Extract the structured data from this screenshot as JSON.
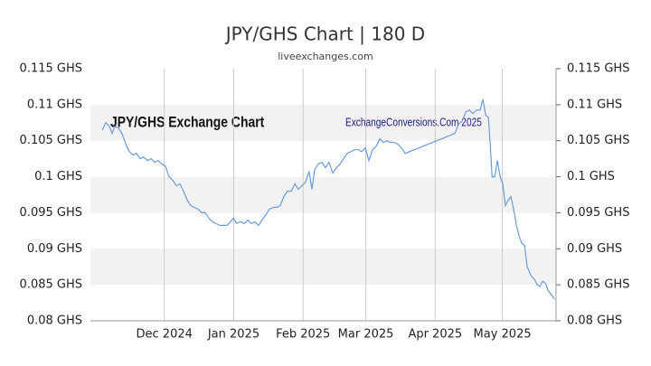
{
  "chart_data": {
    "type": "line",
    "title": "JPY/GHS Chart | 180 D",
    "subtitle": "liveexchanges.com",
    "annotations": [
      "JPY/GHS Exchange Chart",
      "ExchangeConversions.Com 2025"
    ],
    "color": "#6b9bd9",
    "grid": true,
    "x": [
      5.3,
      6.9,
      8.5,
      9.7,
      10.9,
      12.5,
      14.1,
      15.8,
      17.4,
      19.0,
      20.6,
      22.2,
      23.8,
      25.4,
      27.1,
      28.7,
      30.3,
      31.9,
      33.5,
      35.1,
      36.8,
      38.4,
      40.0,
      41.6,
      43.2,
      44.8,
      46.4,
      48.1,
      49.7,
      51.3,
      52.9,
      54.5,
      56.1,
      57.8,
      59.4,
      61.0,
      62.6,
      63.8,
      65.4,
      67.0,
      68.7,
      70.3,
      71.9,
      73.5,
      75.1,
      76.7,
      78.4,
      80.0,
      81.6,
      83.2,
      84.8,
      86.4,
      88.0,
      89.7,
      91.3,
      92.9,
      94.5,
      96.1,
      97.7,
      98.9,
      100.2,
      101.8,
      103.4,
      105.0,
      106.6,
      108.3,
      109.9,
      111.5,
      113.1,
      114.7,
      116.4,
      118.0,
      119.6,
      121.2,
      122.8,
      124.4,
      126.0,
      127.7,
      129.3,
      130.9,
      132.5,
      134.1,
      135.7,
      137.4,
      139.0,
      140.6,
      162.8,
      164.4,
      166.1,
      167.7,
      169.3,
      170.9,
      172.5,
      174.1,
      175.3,
      176.6,
      177.8,
      178.6,
      179.4,
      180.6,
      181.8,
      183.0,
      184.2,
      185.4,
      186.6,
      187.8,
      189.0,
      190.3,
      191.5,
      192.7,
      193.9,
      195.1,
      196.8,
      198.4,
      199.6,
      200.8,
      202.0,
      203.2,
      204.4,
      205.6,
      207.3
    ],
    "values": [
      0.1065,
      0.1075,
      0.107,
      0.106,
      0.107,
      0.10675,
      0.106,
      0.1045,
      0.1035,
      0.103,
      0.10325,
      0.1025,
      0.10275,
      0.10225,
      0.1025,
      0.102,
      0.10225,
      0.10175,
      0.1015,
      0.1,
      0.0995,
      0.09875,
      0.099,
      0.098,
      0.09675,
      0.096,
      0.09575,
      0.0955,
      0.095,
      0.095,
      0.09425,
      0.09375,
      0.0935,
      0.09325,
      0.09325,
      0.09325,
      0.09375,
      0.09425,
      0.0935,
      0.09375,
      0.0935,
      0.094,
      0.0935,
      0.09375,
      0.09325,
      0.094,
      0.09475,
      0.0955,
      0.09575,
      0.09575,
      0.096,
      0.09725,
      0.098,
      0.098,
      0.099,
      0.09825,
      0.09875,
      0.09925,
      0.10075,
      0.09825,
      0.101,
      0.10175,
      0.102,
      0.10125,
      0.102,
      0.1005,
      0.10125,
      0.10175,
      0.1025,
      0.10325,
      0.1035,
      0.10375,
      0.10375,
      0.1035,
      0.104,
      0.10225,
      0.10375,
      0.10425,
      0.10525,
      0.10475,
      0.105,
      0.10475,
      0.10475,
      0.1045,
      0.104,
      0.10325,
      0.106,
      0.10725,
      0.10775,
      0.109,
      0.10925,
      0.10875,
      0.10925,
      0.10925,
      0.11075,
      0.1085,
      0.10825,
      0.1045,
      0.1,
      0.1,
      0.10225,
      0.1,
      0.099,
      0.096,
      0.09675,
      0.09725,
      0.0955,
      0.09325,
      0.09175,
      0.09075,
      0.0905,
      0.0875,
      0.08625,
      0.08575,
      0.085,
      0.08475,
      0.0855,
      0.08525,
      0.08425,
      0.08375,
      0.083
    ],
    "xlim": [
      0,
      208
    ],
    "xticks": [
      {
        "value": 33,
        "label": "Dec 2024"
      },
      {
        "value": 64,
        "label": "Jan 2025"
      },
      {
        "value": 95,
        "label": "Feb 2025"
      },
      {
        "value": 123,
        "label": "Mar 2025"
      },
      {
        "value": 154,
        "label": "Apr 2025"
      },
      {
        "value": 184,
        "label": "May 2025"
      }
    ],
    "ylim": [
      0.08,
      0.115
    ],
    "yticks": [
      {
        "value": 0.08,
        "label": "0.08 GHS"
      },
      {
        "value": 0.085,
        "label": "0.085 GHS"
      },
      {
        "value": 0.09,
        "label": "0.09 GHS"
      },
      {
        "value": 0.095,
        "label": "0.095 GHS"
      },
      {
        "value": 0.1,
        "label": "0.1 GHS"
      },
      {
        "value": 0.105,
        "label": "0.105 GHS"
      },
      {
        "value": 0.11,
        "label": "0.11 GHS"
      },
      {
        "value": 0.115,
        "label": "0.115 GHS"
      }
    ]
  }
}
